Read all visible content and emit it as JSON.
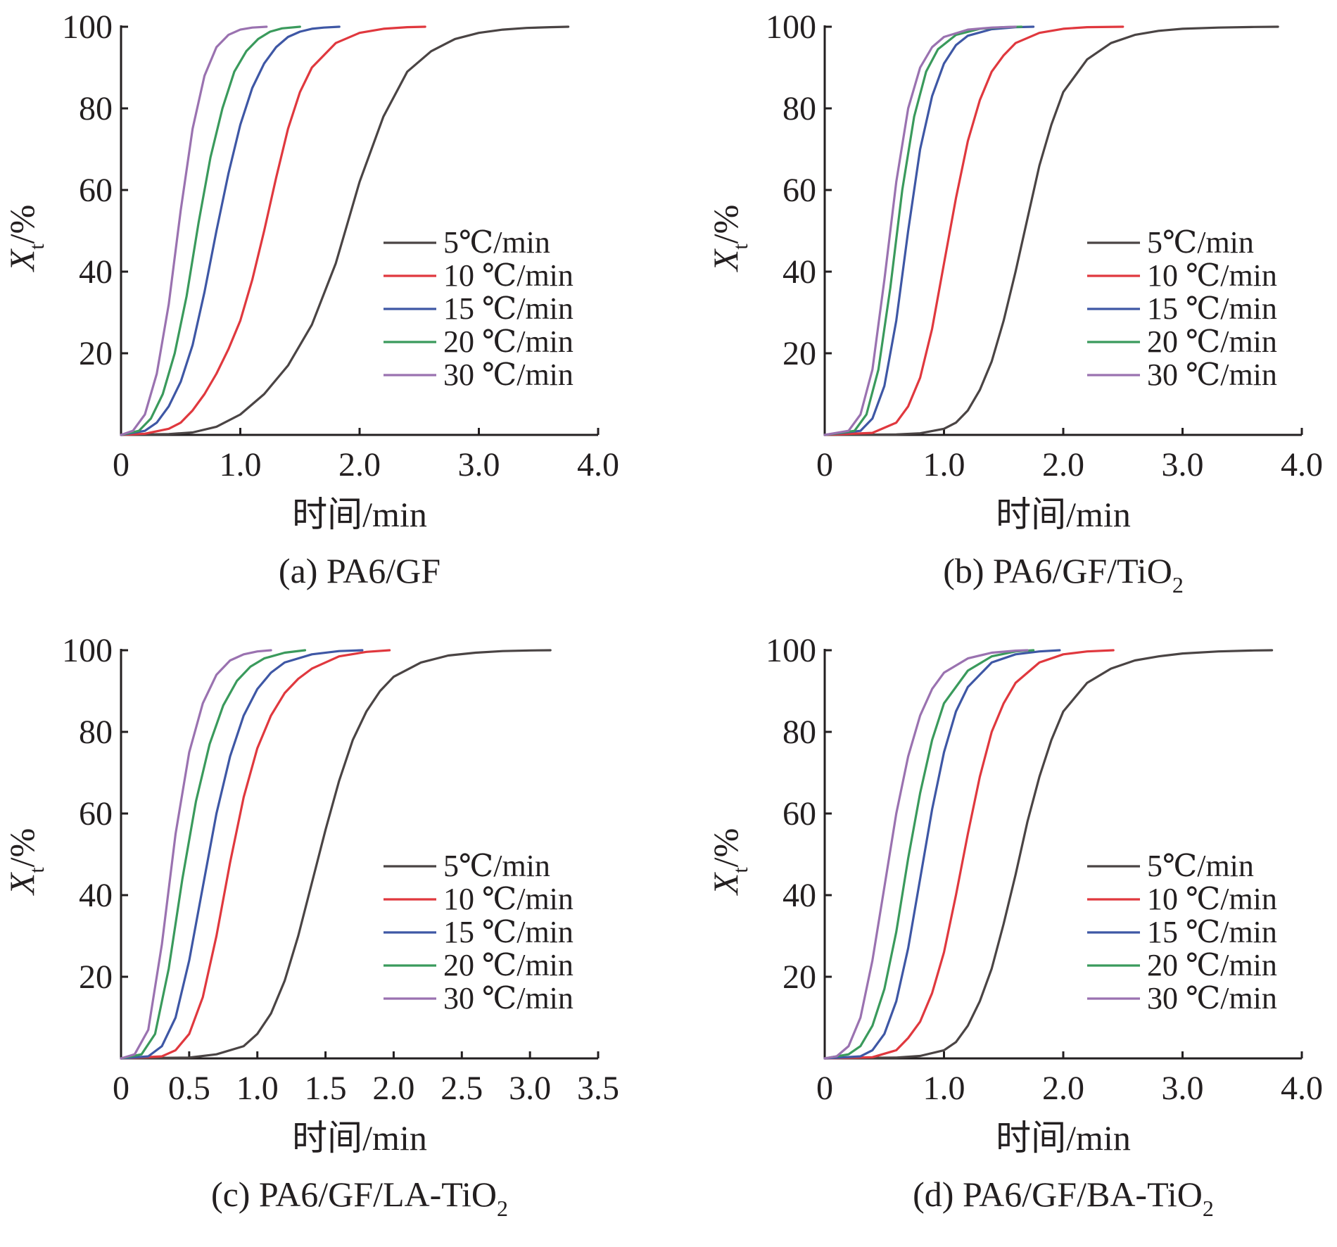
{
  "colors": {
    "axis": "#231f20",
    "5": "#4a4444",
    "10": "#e0383e",
    "15": "#3e57a5",
    "20": "#3a9a5c",
    "30": "#9a72b0"
  },
  "chart_data": [
    {
      "type": "line",
      "caption": "(a) PA6/GF",
      "caption_main": "(a) PA6/GF",
      "caption_sub": "",
      "xlabel": "时间/min",
      "ylabel_main": "X",
      "ylabel_sub": "t",
      "ylabel_rest": "/%",
      "xlim": [
        0,
        4.0
      ],
      "ylim": [
        0,
        100
      ],
      "xticks": [
        0,
        1.0,
        2.0,
        3.0,
        4.0
      ],
      "xtick_labels": [
        "0",
        "1.0",
        "2.0",
        "3.0",
        "4.0"
      ],
      "yticks": [
        20,
        40,
        60,
        80,
        100
      ],
      "ytick_labels": [
        "20",
        "40",
        "60",
        "80",
        "100"
      ],
      "legend_position": "center-right",
      "series": [
        {
          "name": "5℃/min",
          "color_key": "5",
          "x": [
            0,
            0.4,
            0.6,
            0.8,
            1.0,
            1.2,
            1.4,
            1.6,
            1.8,
            1.9,
            2.0,
            2.2,
            2.4,
            2.6,
            2.8,
            3.0,
            3.2,
            3.4,
            3.6,
            3.75
          ],
          "y": [
            0,
            0.2,
            0.6,
            2,
            5,
            10,
            17,
            27,
            42,
            52,
            62,
            78,
            89,
            94,
            97,
            98.5,
            99.3,
            99.7,
            99.9,
            100
          ]
        },
        {
          "name": "10 ℃/min",
          "color_key": "10",
          "x": [
            0,
            0.2,
            0.4,
            0.5,
            0.6,
            0.7,
            0.8,
            0.9,
            1.0,
            1.1,
            1.2,
            1.3,
            1.4,
            1.5,
            1.6,
            1.8,
            2.0,
            2.2,
            2.4,
            2.55
          ],
          "y": [
            0,
            0.3,
            1.5,
            3,
            6,
            10,
            15,
            21,
            28,
            38,
            50,
            63,
            75,
            84,
            90,
            96,
            98.5,
            99.5,
            99.9,
            100
          ]
        },
        {
          "name": "15 ℃/min",
          "color_key": "15",
          "x": [
            0,
            0.2,
            0.3,
            0.4,
            0.5,
            0.6,
            0.7,
            0.8,
            0.9,
            1.0,
            1.1,
            1.2,
            1.3,
            1.4,
            1.5,
            1.6,
            1.7,
            1.83
          ],
          "y": [
            0,
            1,
            3,
            7,
            13,
            22,
            35,
            50,
            64,
            76,
            85,
            91,
            95,
            97.5,
            98.8,
            99.5,
            99.8,
            100
          ]
        },
        {
          "name": "20 ℃/min",
          "color_key": "20",
          "x": [
            0,
            0.15,
            0.25,
            0.35,
            0.45,
            0.55,
            0.65,
            0.75,
            0.85,
            0.95,
            1.05,
            1.15,
            1.25,
            1.35,
            1.5
          ],
          "y": [
            0,
            1,
            4,
            10,
            20,
            34,
            52,
            68,
            80,
            89,
            94,
            97,
            98.8,
            99.6,
            100
          ]
        },
        {
          "name": "30 ℃/min",
          "color_key": "30",
          "x": [
            0,
            0.1,
            0.2,
            0.3,
            0.4,
            0.5,
            0.6,
            0.7,
            0.8,
            0.9,
            1.0,
            1.1,
            1.22
          ],
          "y": [
            0,
            1,
            5,
            15,
            32,
            55,
            75,
            88,
            95,
            98,
            99.3,
            99.8,
            100
          ]
        }
      ]
    },
    {
      "type": "line",
      "caption": "(b) PA6/GF/TiO2",
      "caption_main": "(b) PA6/GF/TiO",
      "caption_sub": "2",
      "xlabel": "时间/min",
      "ylabel_main": "X",
      "ylabel_sub": "t",
      "ylabel_rest": "/%",
      "xlim": [
        0,
        4.0
      ],
      "ylim": [
        0,
        100
      ],
      "xticks": [
        0,
        1.0,
        2.0,
        3.0,
        4.0
      ],
      "xtick_labels": [
        "0",
        "1.0",
        "2.0",
        "3.0",
        "4.0"
      ],
      "yticks": [
        20,
        40,
        60,
        80,
        100
      ],
      "ytick_labels": [
        "20",
        "40",
        "60",
        "80",
        "100"
      ],
      "legend_position": "center-right",
      "series": [
        {
          "name": "5℃/min",
          "color_key": "5",
          "x": [
            0,
            0.6,
            0.8,
            1.0,
            1.1,
            1.2,
            1.3,
            1.4,
            1.5,
            1.6,
            1.7,
            1.8,
            1.9,
            2.0,
            2.2,
            2.4,
            2.6,
            2.8,
            3.0,
            3.3,
            3.6,
            3.8
          ],
          "y": [
            0,
            0.1,
            0.4,
            1.5,
            3,
            6,
            11,
            18,
            28,
            40,
            53,
            66,
            76,
            84,
            92,
            96,
            98,
            99,
            99.5,
            99.8,
            99.95,
            100
          ]
        },
        {
          "name": "10 ℃/min",
          "color_key": "10",
          "x": [
            0,
            0.4,
            0.6,
            0.7,
            0.8,
            0.9,
            1.0,
            1.1,
            1.2,
            1.3,
            1.4,
            1.5,
            1.6,
            1.8,
            2.0,
            2.2,
            2.5
          ],
          "y": [
            0,
            0.5,
            3,
            7,
            14,
            26,
            42,
            58,
            72,
            82,
            89,
            93,
            96,
            98.5,
            99.5,
            99.9,
            100
          ]
        },
        {
          "name": "15 ℃/min",
          "color_key": "15",
          "x": [
            0,
            0.3,
            0.4,
            0.5,
            0.6,
            0.7,
            0.8,
            0.9,
            1.0,
            1.1,
            1.2,
            1.4,
            1.6,
            1.75
          ],
          "y": [
            0,
            1,
            4,
            12,
            28,
            50,
            70,
            83,
            91,
            95.5,
            97.8,
            99.4,
            99.9,
            100
          ]
        },
        {
          "name": "20 ℃/min",
          "color_key": "20",
          "x": [
            0,
            0.25,
            0.35,
            0.45,
            0.55,
            0.65,
            0.75,
            0.85,
            0.95,
            1.1,
            1.3,
            1.5,
            1.65
          ],
          "y": [
            0,
            1,
            5,
            16,
            36,
            60,
            78,
            89,
            94.5,
            98,
            99.5,
            99.9,
            100
          ]
        },
        {
          "name": "30 ℃/min",
          "color_key": "30",
          "x": [
            0,
            0.2,
            0.3,
            0.4,
            0.5,
            0.6,
            0.7,
            0.8,
            0.9,
            1.0,
            1.2,
            1.4,
            1.6
          ],
          "y": [
            0,
            1,
            5,
            16,
            38,
            62,
            80,
            90,
            95,
            97.5,
            99.3,
            99.8,
            100
          ]
        }
      ]
    },
    {
      "type": "line",
      "caption": "(c) PA6/GF/LA-TiO2",
      "caption_main": "(c) PA6/GF/LA-TiO",
      "caption_sub": "2",
      "xlabel": "时间/min",
      "ylabel_main": "X",
      "ylabel_sub": "t",
      "ylabel_rest": "/%",
      "xlim": [
        0,
        3.5
      ],
      "ylim": [
        0,
        100
      ],
      "xticks": [
        0,
        0.5,
        1.0,
        1.5,
        2.0,
        2.5,
        3.0,
        3.5
      ],
      "xtick_labels": [
        "0",
        "0.5",
        "1.0",
        "1.5",
        "2.0",
        "2.5",
        "3.0",
        "3.5"
      ],
      "yticks": [
        20,
        40,
        60,
        80,
        100
      ],
      "ytick_labels": [
        "20",
        "40",
        "60",
        "80",
        "100"
      ],
      "legend_position": "center-right",
      "series": [
        {
          "name": "5℃/min",
          "color_key": "5",
          "x": [
            0,
            0.5,
            0.7,
            0.9,
            1.0,
            1.1,
            1.2,
            1.3,
            1.4,
            1.5,
            1.6,
            1.7,
            1.8,
            1.9,
            2.0,
            2.2,
            2.4,
            2.6,
            2.8,
            3.0,
            3.15
          ],
          "y": [
            0,
            0.2,
            1,
            3,
            6,
            11,
            19,
            30,
            43,
            56,
            68,
            78,
            85,
            90,
            93.5,
            97,
            98.7,
            99.4,
            99.8,
            99.95,
            100
          ]
        },
        {
          "name": "10 ℃/min",
          "color_key": "10",
          "x": [
            0,
            0.3,
            0.4,
            0.5,
            0.6,
            0.7,
            0.8,
            0.9,
            1.0,
            1.1,
            1.2,
            1.3,
            1.4,
            1.6,
            1.8,
            1.97
          ],
          "y": [
            0,
            0.5,
            2,
            6,
            15,
            30,
            48,
            64,
            76,
            84,
            89.5,
            93,
            95.5,
            98.5,
            99.6,
            100
          ]
        },
        {
          "name": "15 ℃/min",
          "color_key": "15",
          "x": [
            0,
            0.2,
            0.3,
            0.4,
            0.5,
            0.6,
            0.7,
            0.8,
            0.9,
            1.0,
            1.1,
            1.2,
            1.4,
            1.6,
            1.77
          ],
          "y": [
            0,
            0.5,
            3,
            10,
            24,
            42,
            60,
            74,
            84,
            90.5,
            94.5,
            97,
            99,
            99.8,
            100
          ]
        },
        {
          "name": "20 ℃/min",
          "color_key": "20",
          "x": [
            0,
            0.15,
            0.25,
            0.35,
            0.45,
            0.55,
            0.65,
            0.75,
            0.85,
            0.95,
            1.05,
            1.2,
            1.35
          ],
          "y": [
            0,
            1,
            6,
            22,
            44,
            63,
            77,
            86.5,
            92.5,
            96,
            98,
            99.4,
            100
          ]
        },
        {
          "name": "30 ℃/min",
          "color_key": "30",
          "x": [
            0,
            0.1,
            0.2,
            0.3,
            0.4,
            0.5,
            0.6,
            0.7,
            0.8,
            0.9,
            1.0,
            1.1
          ],
          "y": [
            0,
            1,
            7,
            28,
            55,
            75,
            87,
            94,
            97.5,
            99,
            99.7,
            100
          ]
        }
      ]
    },
    {
      "type": "line",
      "caption": "(d) PA6/GF/BA-TiO2",
      "caption_main": "(d) PA6/GF/BA-TiO",
      "caption_sub": "2",
      "xlabel": "时间/min",
      "ylabel_main": "X",
      "ylabel_sub": "t",
      "ylabel_rest": "/%",
      "xlim": [
        0,
        4.0
      ],
      "ylim": [
        0,
        100
      ],
      "xticks": [
        0,
        1.0,
        2.0,
        3.0,
        4.0
      ],
      "xtick_labels": [
        "0",
        "1.0",
        "2.0",
        "3.0",
        "4.0"
      ],
      "yticks": [
        20,
        40,
        60,
        80,
        100
      ],
      "ytick_labels": [
        "20",
        "40",
        "60",
        "80",
        "100"
      ],
      "legend_position": "center-right",
      "series": [
        {
          "name": "5℃/min",
          "color_key": "5",
          "x": [
            0,
            0.6,
            0.8,
            1.0,
            1.1,
            1.2,
            1.3,
            1.4,
            1.5,
            1.6,
            1.7,
            1.8,
            1.9,
            2.0,
            2.2,
            2.4,
            2.6,
            2.8,
            3.0,
            3.3,
            3.6,
            3.75
          ],
          "y": [
            0,
            0.2,
            0.6,
            2,
            4,
            8,
            14,
            22,
            33,
            45,
            58,
            69,
            78,
            85,
            92,
            95.5,
            97.5,
            98.5,
            99.2,
            99.7,
            99.95,
            100
          ]
        },
        {
          "name": "10 ℃/min",
          "color_key": "10",
          "x": [
            0,
            0.4,
            0.6,
            0.7,
            0.8,
            0.9,
            1.0,
            1.1,
            1.2,
            1.3,
            1.4,
            1.5,
            1.6,
            1.8,
            2.0,
            2.2,
            2.42
          ],
          "y": [
            0,
            0.3,
            2,
            5,
            9,
            16,
            26,
            40,
            55,
            69,
            80,
            87,
            92,
            97,
            99,
            99.7,
            100
          ]
        },
        {
          "name": "15 ℃/min",
          "color_key": "15",
          "x": [
            0,
            0.3,
            0.4,
            0.5,
            0.6,
            0.7,
            0.8,
            0.9,
            1.0,
            1.1,
            1.2,
            1.4,
            1.6,
            1.8,
            1.97
          ],
          "y": [
            0,
            0.5,
            2,
            6,
            14,
            27,
            44,
            61,
            75,
            85,
            91,
            97,
            99,
            99.7,
            100
          ]
        },
        {
          "name": "20 ℃/min",
          "color_key": "20",
          "x": [
            0,
            0.2,
            0.3,
            0.4,
            0.5,
            0.6,
            0.7,
            0.8,
            0.9,
            1.0,
            1.2,
            1.4,
            1.6,
            1.75
          ],
          "y": [
            0,
            1,
            3,
            8,
            17,
            31,
            49,
            65,
            78,
            87,
            95,
            98.5,
            99.7,
            100
          ]
        },
        {
          "name": "30 ℃/min",
          "color_key": "30",
          "x": [
            0,
            0.1,
            0.2,
            0.3,
            0.4,
            0.5,
            0.6,
            0.7,
            0.8,
            0.9,
            1.0,
            1.2,
            1.4,
            1.6,
            1.7
          ],
          "y": [
            0,
            0.5,
            3,
            10,
            24,
            42,
            60,
            74,
            84,
            90.5,
            94.5,
            98,
            99.4,
            99.9,
            100
          ]
        }
      ]
    }
  ]
}
